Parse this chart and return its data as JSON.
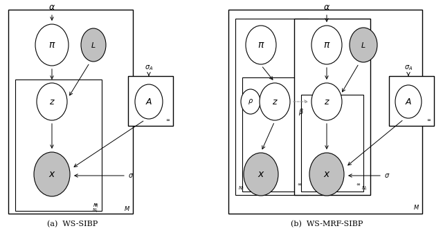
{
  "fig_width": 6.4,
  "fig_height": 3.37,
  "bg_color": "#ffffff",
  "caption_a": "(a)  WS-SIBP",
  "caption_b": "(b)  WS-MRF-SIBP",
  "gray_fill": "#c0c0c0",
  "white_fill": "#ffffff",
  "arrow_color": "#333333",
  "sigma_arrow_color": "#555555"
}
